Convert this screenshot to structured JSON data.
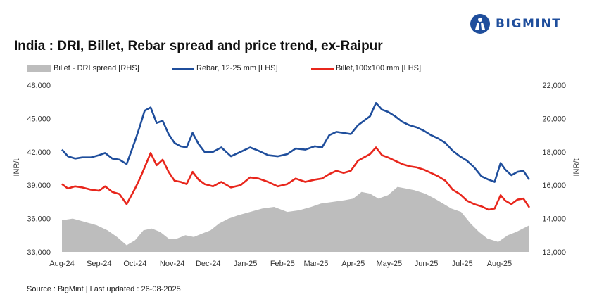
{
  "brand": {
    "name": "BIGMINT",
    "logo_icon": "bigmint-logo-icon"
  },
  "chart_data": {
    "type": "line",
    "title": "India : DRI, Billet, Rebar spread and price trend, ex-Raipur",
    "source": "Source : BigMint | Last updated : 26-08-2025",
    "ylabel_left": "INR/t",
    "ylabel_right": "INR/t",
    "y_left": {
      "range": [
        33000,
        48000
      ],
      "ticks": [
        "33,000",
        "36,000",
        "39,000",
        "42,000",
        "45,000",
        "48,000"
      ],
      "values": [
        33000,
        36000,
        39000,
        42000,
        45000,
        48000
      ]
    },
    "y_right": {
      "range": [
        12000,
        22000
      ],
      "ticks": [
        "12,000",
        "14,000",
        "16,000",
        "18,000",
        "20,000",
        "22,000"
      ],
      "values": [
        12000,
        14000,
        16000,
        18000,
        20000,
        22000
      ]
    },
    "x_range": [
      "2024-08-01",
      "2025-08-26"
    ],
    "x_ticks": [
      {
        "label": "Aug-24",
        "date": "2024-08-01"
      },
      {
        "label": "Sep-24",
        "date": "2024-09-01"
      },
      {
        "label": "Oct-24",
        "date": "2024-10-01"
      },
      {
        "label": "Nov-24",
        "date": "2024-11-01"
      },
      {
        "label": "Dec-24",
        "date": "2024-12-01"
      },
      {
        "label": "Jan-25",
        "date": "2025-01-01"
      },
      {
        "label": "Feb-25",
        "date": "2025-02-01"
      },
      {
        "label": "Mar-25",
        "date": "2025-03-01"
      },
      {
        "label": "Apr-25",
        "date": "2025-04-01"
      },
      {
        "label": "May-25",
        "date": "2025-05-01"
      },
      {
        "label": "Jun-25",
        "date": "2025-06-01"
      },
      {
        "label": "Jul-25",
        "date": "2025-07-01"
      },
      {
        "label": "Aug-25",
        "date": "2025-08-01"
      }
    ],
    "grid": false,
    "legend_position": "top",
    "series": [
      {
        "name": "Billet - DRI spread  [RHS]",
        "type": "area",
        "axis": "right",
        "color": "#bdbdbd",
        "points": [
          [
            "2024-08-01",
            13900
          ],
          [
            "2024-08-10",
            14000
          ],
          [
            "2024-08-20",
            13800
          ],
          [
            "2024-08-30",
            13600
          ],
          [
            "2024-09-08",
            13300
          ],
          [
            "2024-09-16",
            12900
          ],
          [
            "2024-09-24",
            12400
          ],
          [
            "2024-10-01",
            12700
          ],
          [
            "2024-10-08",
            13300
          ],
          [
            "2024-10-15",
            13400
          ],
          [
            "2024-10-22",
            13200
          ],
          [
            "2024-10-29",
            12800
          ],
          [
            "2024-11-05",
            12800
          ],
          [
            "2024-11-12",
            13000
          ],
          [
            "2024-11-19",
            12900
          ],
          [
            "2024-11-26",
            13100
          ],
          [
            "2024-12-03",
            13300
          ],
          [
            "2024-12-10",
            13700
          ],
          [
            "2024-12-18",
            14000
          ],
          [
            "2024-12-26",
            14200
          ],
          [
            "2025-01-05",
            14400
          ],
          [
            "2025-01-15",
            14600
          ],
          [
            "2025-01-25",
            14700
          ],
          [
            "2025-02-05",
            14400
          ],
          [
            "2025-02-15",
            14500
          ],
          [
            "2025-02-25",
            14700
          ],
          [
            "2025-03-05",
            14900
          ],
          [
            "2025-03-15",
            15000
          ],
          [
            "2025-03-25",
            15100
          ],
          [
            "2025-04-01",
            15200
          ],
          [
            "2025-04-08",
            15600
          ],
          [
            "2025-04-15",
            15500
          ],
          [
            "2025-04-22",
            15200
          ],
          [
            "2025-04-30",
            15400
          ],
          [
            "2025-05-08",
            15900
          ],
          [
            "2025-05-15",
            15800
          ],
          [
            "2025-05-22",
            15700
          ],
          [
            "2025-05-31",
            15500
          ],
          [
            "2025-06-08",
            15200
          ],
          [
            "2025-06-15",
            14900
          ],
          [
            "2025-06-22",
            14600
          ],
          [
            "2025-06-30",
            14400
          ],
          [
            "2025-07-08",
            13700
          ],
          [
            "2025-07-15",
            13200
          ],
          [
            "2025-07-22",
            12800
          ],
          [
            "2025-07-31",
            12600
          ],
          [
            "2025-08-08",
            13000
          ],
          [
            "2025-08-15",
            13200
          ],
          [
            "2025-08-26",
            13600
          ]
        ]
      },
      {
        "name": "Rebar, 12-25 mm [LHS]",
        "type": "line",
        "axis": "left",
        "color": "#1f4e9c",
        "points": [
          [
            "2024-08-01",
            42200
          ],
          [
            "2024-08-06",
            41600
          ],
          [
            "2024-08-12",
            41400
          ],
          [
            "2024-08-18",
            41500
          ],
          [
            "2024-08-25",
            41500
          ],
          [
            "2024-09-01",
            41700
          ],
          [
            "2024-09-06",
            41900
          ],
          [
            "2024-09-12",
            41400
          ],
          [
            "2024-09-18",
            41300
          ],
          [
            "2024-09-24",
            40900
          ],
          [
            "2024-10-01",
            43000
          ],
          [
            "2024-10-05",
            44300
          ],
          [
            "2024-10-09",
            45700
          ],
          [
            "2024-10-14",
            46000
          ],
          [
            "2024-10-19",
            44600
          ],
          [
            "2024-10-24",
            44800
          ],
          [
            "2024-10-29",
            43600
          ],
          [
            "2024-11-03",
            42800
          ],
          [
            "2024-11-08",
            42500
          ],
          [
            "2024-11-13",
            42400
          ],
          [
            "2024-11-18",
            43700
          ],
          [
            "2024-11-23",
            42700
          ],
          [
            "2024-11-28",
            42000
          ],
          [
            "2024-12-05",
            42000
          ],
          [
            "2024-12-12",
            42400
          ],
          [
            "2024-12-20",
            41600
          ],
          [
            "2024-12-28",
            42000
          ],
          [
            "2025-01-05",
            42400
          ],
          [
            "2025-01-12",
            42100
          ],
          [
            "2025-01-20",
            41700
          ],
          [
            "2025-01-28",
            41600
          ],
          [
            "2025-02-05",
            41800
          ],
          [
            "2025-02-12",
            42300
          ],
          [
            "2025-02-20",
            42200
          ],
          [
            "2025-02-28",
            42500
          ],
          [
            "2025-03-06",
            42400
          ],
          [
            "2025-03-12",
            43500
          ],
          [
            "2025-03-18",
            43800
          ],
          [
            "2025-03-24",
            43700
          ],
          [
            "2025-03-30",
            43600
          ],
          [
            "2025-04-05",
            44400
          ],
          [
            "2025-04-10",
            44800
          ],
          [
            "2025-04-15",
            45200
          ],
          [
            "2025-04-20",
            46400
          ],
          [
            "2025-04-25",
            45800
          ],
          [
            "2025-04-30",
            45600
          ],
          [
            "2025-05-06",
            45200
          ],
          [
            "2025-05-12",
            44700
          ],
          [
            "2025-05-18",
            44400
          ],
          [
            "2025-05-24",
            44200
          ],
          [
            "2025-05-30",
            43900
          ],
          [
            "2025-06-05",
            43500
          ],
          [
            "2025-06-11",
            43200
          ],
          [
            "2025-06-17",
            42800
          ],
          [
            "2025-06-23",
            42100
          ],
          [
            "2025-06-29",
            41600
          ],
          [
            "2025-07-05",
            41200
          ],
          [
            "2025-07-11",
            40600
          ],
          [
            "2025-07-17",
            39800
          ],
          [
            "2025-07-23",
            39500
          ],
          [
            "2025-07-28",
            39300
          ],
          [
            "2025-08-02",
            41000
          ],
          [
            "2025-08-06",
            40400
          ],
          [
            "2025-08-11",
            39900
          ],
          [
            "2025-08-16",
            40200
          ],
          [
            "2025-08-21",
            40300
          ],
          [
            "2025-08-26",
            39500
          ]
        ]
      },
      {
        "name": "Billet,100x100 mm [LHS]",
        "type": "line",
        "axis": "left",
        "color": "#e8261c",
        "points": [
          [
            "2024-08-01",
            39100
          ],
          [
            "2024-08-06",
            38700
          ],
          [
            "2024-08-12",
            38900
          ],
          [
            "2024-08-18",
            38800
          ],
          [
            "2024-08-25",
            38600
          ],
          [
            "2024-09-01",
            38500
          ],
          [
            "2024-09-06",
            38900
          ],
          [
            "2024-09-12",
            38400
          ],
          [
            "2024-09-18",
            38200
          ],
          [
            "2024-09-24",
            37300
          ],
          [
            "2024-10-01",
            38700
          ],
          [
            "2024-10-05",
            39600
          ],
          [
            "2024-10-09",
            40600
          ],
          [
            "2024-10-14",
            41900
          ],
          [
            "2024-10-19",
            40800
          ],
          [
            "2024-10-24",
            41300
          ],
          [
            "2024-10-29",
            40200
          ],
          [
            "2024-11-03",
            39400
          ],
          [
            "2024-11-08",
            39300
          ],
          [
            "2024-11-13",
            39100
          ],
          [
            "2024-11-18",
            40200
          ],
          [
            "2024-11-23",
            39500
          ],
          [
            "2024-11-28",
            39100
          ],
          [
            "2024-12-05",
            38900
          ],
          [
            "2024-12-12",
            39300
          ],
          [
            "2024-12-20",
            38800
          ],
          [
            "2024-12-28",
            39000
          ],
          [
            "2025-01-05",
            39700
          ],
          [
            "2025-01-12",
            39600
          ],
          [
            "2025-01-20",
            39300
          ],
          [
            "2025-01-28",
            38900
          ],
          [
            "2025-02-05",
            39100
          ],
          [
            "2025-02-12",
            39600
          ],
          [
            "2025-02-20",
            39300
          ],
          [
            "2025-02-28",
            39500
          ],
          [
            "2025-03-06",
            39600
          ],
          [
            "2025-03-12",
            40000
          ],
          [
            "2025-03-18",
            40300
          ],
          [
            "2025-03-24",
            40100
          ],
          [
            "2025-03-30",
            40300
          ],
          [
            "2025-04-05",
            41200
          ],
          [
            "2025-04-10",
            41500
          ],
          [
            "2025-04-15",
            41800
          ],
          [
            "2025-04-20",
            42400
          ],
          [
            "2025-04-25",
            41700
          ],
          [
            "2025-04-30",
            41500
          ],
          [
            "2025-05-06",
            41200
          ],
          [
            "2025-05-12",
            40900
          ],
          [
            "2025-05-18",
            40700
          ],
          [
            "2025-05-24",
            40600
          ],
          [
            "2025-05-30",
            40400
          ],
          [
            "2025-06-05",
            40100
          ],
          [
            "2025-06-11",
            39800
          ],
          [
            "2025-06-17",
            39400
          ],
          [
            "2025-06-23",
            38600
          ],
          [
            "2025-06-29",
            38200
          ],
          [
            "2025-07-05",
            37600
          ],
          [
            "2025-07-11",
            37300
          ],
          [
            "2025-07-17",
            37100
          ],
          [
            "2025-07-23",
            36800
          ],
          [
            "2025-07-28",
            36900
          ],
          [
            "2025-08-02",
            38100
          ],
          [
            "2025-08-06",
            37600
          ],
          [
            "2025-08-11",
            37300
          ],
          [
            "2025-08-16",
            37700
          ],
          [
            "2025-08-21",
            37800
          ],
          [
            "2025-08-26",
            37000
          ]
        ]
      }
    ]
  }
}
